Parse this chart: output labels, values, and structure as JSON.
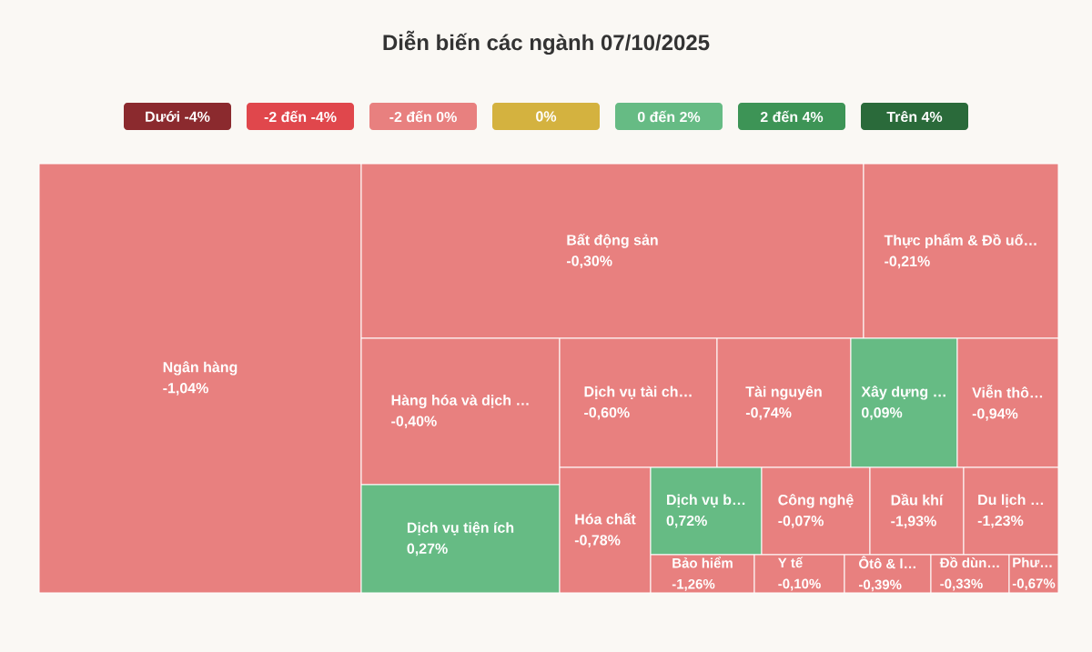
{
  "chart_data": {
    "type": "other",
    "title": "Diễn biến các ngành 07/10/2025",
    "annotations": [
      "Dưới -4%",
      "-2 đến -4%",
      "-2 đến 0%",
      "0%",
      "0 đến 2%",
      "2 đến 4%",
      "Trên 4%"
    ],
    "categories": [
      "Ngân hàng",
      "Bất động sản",
      "Thực phẩm & Đồ uố…",
      "Hàng hóa và dịch …",
      "Dịch vụ tiện ích",
      "Dịch vụ tài ch…",
      "Tài nguyên",
      "Xây dựng …",
      "Viễn thô…",
      "Hóa chất",
      "Dịch vụ b…",
      "Công nghệ",
      "Dầu khí",
      "Du lịch …",
      "Bảo hiểm",
      "Y tế",
      "Ôtô & l…",
      "Đồ dùn…",
      "Phư…"
    ],
    "values": [
      -1.04,
      -0.3,
      -0.21,
      -0.4,
      0.27,
      -0.6,
      -0.74,
      0.09,
      -0.94,
      -0.78,
      0.72,
      -0.07,
      -1.93,
      -1.23,
      -1.26,
      -0.1,
      -0.39,
      -0.33,
      -0.67
    ],
    "value_labels": [
      "-1,04%",
      "-0,30%",
      "-0,21%",
      "-0,40%",
      "0,27%",
      "-0,60%",
      "-0,74%",
      "0,09%",
      "-0,94%",
      "-0,78%",
      "0,72%",
      "-0,07%",
      "-1,93%",
      "-1,23%",
      "-1,26%",
      "-0,10%",
      "-0,39%",
      "-0,33%",
      "-0,67%"
    ]
  }
}
